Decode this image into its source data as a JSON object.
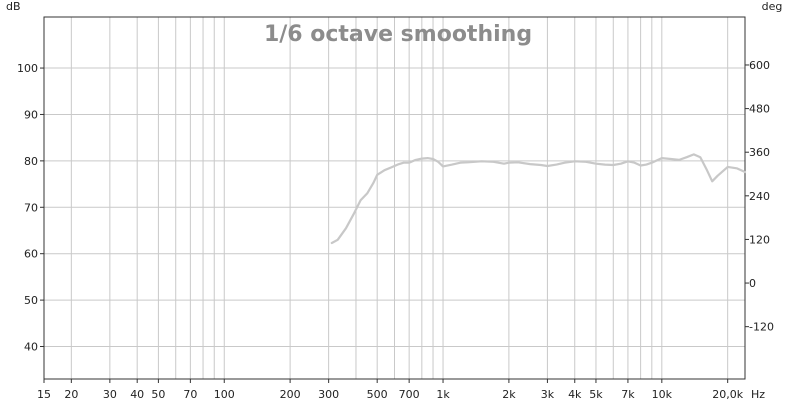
{
  "chart_data": {
    "type": "line",
    "title": "1/6 octave smoothing",
    "left_unit": "dB",
    "right_unit": "deg",
    "x_unit": "Hz",
    "x_scale": "log",
    "xlim": [
      15,
      24000
    ],
    "ylim": [
      33,
      111
    ],
    "y2lim": [
      -264,
      732
    ],
    "grid": true,
    "legend": "none",
    "colors": {
      "curve": "#c8c8c8",
      "grid": "#c9c9c9",
      "frame": "#333333",
      "title": "#8c8c8c"
    },
    "x_ticks": [
      {
        "value": 15,
        "label": "15"
      },
      {
        "value": 20,
        "label": "20"
      },
      {
        "value": 30,
        "label": "30"
      },
      {
        "value": 40,
        "label": "40"
      },
      {
        "value": 50,
        "label": "50"
      },
      {
        "value": 70,
        "label": "70"
      },
      {
        "value": 100,
        "label": "100"
      },
      {
        "value": 200,
        "label": "200"
      },
      {
        "value": 300,
        "label": "300"
      },
      {
        "value": 500,
        "label": "500"
      },
      {
        "value": 700,
        "label": "700"
      },
      {
        "value": 1000,
        "label": "1k"
      },
      {
        "value": 2000,
        "label": "2k"
      },
      {
        "value": 3000,
        "label": "3k"
      },
      {
        "value": 4000,
        "label": "4k"
      },
      {
        "value": 5000,
        "label": "5k"
      },
      {
        "value": 7000,
        "label": "7k"
      },
      {
        "value": 10000,
        "label": "10k"
      },
      {
        "value": 20000,
        "label": "20,0k"
      }
    ],
    "x_grid": [
      20,
      30,
      40,
      50,
      60,
      70,
      80,
      90,
      100,
      200,
      300,
      400,
      500,
      600,
      700,
      800,
      900,
      1000,
      2000,
      3000,
      4000,
      5000,
      6000,
      7000,
      8000,
      9000,
      10000,
      20000
    ],
    "y_ticks": [
      {
        "value": 100,
        "label": "100"
      },
      {
        "value": 90,
        "label": "90"
      },
      {
        "value": 80,
        "label": "80"
      },
      {
        "value": 70,
        "label": "70"
      },
      {
        "value": 60,
        "label": "60"
      },
      {
        "value": 50,
        "label": "50"
      },
      {
        "value": 40,
        "label": "40"
      }
    ],
    "y2_ticks": [
      {
        "value": 600,
        "label": "600"
      },
      {
        "value": 480,
        "label": "480"
      },
      {
        "value": 360,
        "label": "360"
      },
      {
        "value": 240,
        "label": "240"
      },
      {
        "value": 120,
        "label": "120"
      },
      {
        "value": 0,
        "label": "0"
      },
      {
        "value": -120,
        "label": "-120"
      }
    ],
    "series": [
      {
        "x": [
          310,
          330,
          360,
          390,
          420,
          450,
          480,
          500,
          540,
          580,
          620,
          660,
          700,
          750,
          800,
          850,
          900,
          950,
          1000,
          1100,
          1200,
          1300,
          1500,
          1700,
          1900,
          2000,
          2200,
          2500,
          2800,
          3000,
          3300,
          3600,
          4000,
          4500,
          5000,
          5500,
          6000,
          6500,
          7000,
          7500,
          8000,
          8500,
          9000,
          9500,
          10000,
          11000,
          12000,
          13000,
          14000,
          15000,
          16000,
          17000,
          18000,
          20000,
          22000,
          24000
        ],
        "y": [
          62.3,
          63.0,
          65.5,
          68.5,
          71.5,
          73.0,
          75.2,
          77.0,
          78.0,
          78.6,
          79.2,
          79.6,
          79.6,
          80.2,
          80.5,
          80.6,
          80.4,
          79.8,
          78.8,
          79.2,
          79.6,
          79.7,
          79.9,
          79.8,
          79.4,
          79.6,
          79.7,
          79.3,
          79.1,
          78.9,
          79.2,
          79.6,
          79.9,
          79.8,
          79.4,
          79.2,
          79.1,
          79.4,
          79.9,
          79.6,
          79.0,
          79.2,
          79.6,
          80.1,
          80.6,
          80.4,
          80.2,
          80.8,
          81.4,
          80.8,
          78.2,
          75.6,
          76.8,
          78.7,
          78.4,
          77.6
        ]
      }
    ]
  }
}
